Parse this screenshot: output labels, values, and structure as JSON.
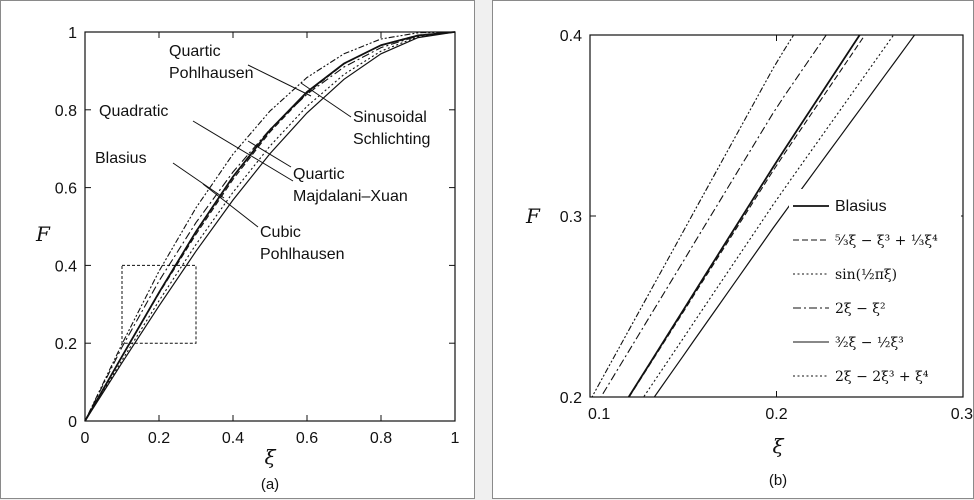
{
  "chart_data": [
    {
      "type": "line",
      "caption": "(a)",
      "xlabel": "ξ",
      "ylabel": "F",
      "xlim": [
        0,
        1
      ],
      "ylim": [
        0,
        1
      ],
      "xticks": [
        "0",
        "0.2",
        "0.4",
        "0.6",
        "0.8",
        "1"
      ],
      "yticks": [
        "0",
        "0.2",
        "0.4",
        "0.6",
        "0.8",
        "1"
      ],
      "grid": false,
      "series": [
        {
          "id": "blasius",
          "style": "solid",
          "x": [
            0,
            0.1,
            0.2,
            0.3,
            0.4,
            0.5,
            0.6,
            0.7,
            0.8,
            0.9,
            1.0
          ],
          "y": [
            0,
            0.166,
            0.33,
            0.487,
            0.628,
            0.748,
            0.846,
            0.919,
            0.966,
            0.991,
            1.0
          ]
        },
        {
          "id": "quartic-pohlhausen",
          "style": "dotted-dash",
          "x": [
            0,
            0.1,
            0.2,
            0.3,
            0.4,
            0.5,
            0.6,
            0.7,
            0.8,
            0.9,
            1.0
          ],
          "y": [
            0,
            0.198,
            0.385,
            0.548,
            0.686,
            0.797,
            0.883,
            0.944,
            0.982,
            0.998,
            1.0
          ]
        },
        {
          "id": "quadratic",
          "style": "dash-dot",
          "x": [
            0,
            0.1,
            0.2,
            0.3,
            0.4,
            0.5,
            0.6,
            0.7,
            0.8,
            0.9,
            1.0
          ],
          "y": [
            0,
            0.19,
            0.36,
            0.51,
            0.64,
            0.75,
            0.84,
            0.91,
            0.96,
            0.99,
            1.0
          ]
        },
        {
          "id": "sinusoidal",
          "style": "dotted",
          "x": [
            0,
            0.1,
            0.2,
            0.3,
            0.4,
            0.5,
            0.6,
            0.7,
            0.8,
            0.9,
            1.0
          ],
          "y": [
            0,
            0.156,
            0.309,
            0.454,
            0.588,
            0.707,
            0.809,
            0.891,
            0.951,
            0.988,
            1.0
          ]
        },
        {
          "id": "quartic-majdalani",
          "style": "dashed",
          "x": [
            0,
            0.1,
            0.2,
            0.3,
            0.4,
            0.5,
            0.6,
            0.7,
            0.8,
            0.9,
            1.0
          ],
          "y": [
            0,
            0.166,
            0.328,
            0.48,
            0.621,
            0.743,
            0.843,
            0.918,
            0.966,
            0.992,
            1.0
          ]
        },
        {
          "id": "cubic-pohlhausen",
          "style": "solid",
          "x": [
            0,
            0.1,
            0.2,
            0.3,
            0.4,
            0.5,
            0.6,
            0.7,
            0.8,
            0.9,
            1.0
          ],
          "y": [
            0,
            0.1495,
            0.296,
            0.4365,
            0.568,
            0.6875,
            0.792,
            0.8785,
            0.944,
            0.9855,
            1.0
          ]
        }
      ],
      "annotations": [
        {
          "lines": [
            "Quartic",
            "Pohlhausen"
          ]
        },
        {
          "lines": [
            "Quadratic"
          ]
        },
        {
          "lines": [
            "Blasius"
          ]
        },
        {
          "lines": [
            "Sinusoidal",
            "Schlichting"
          ]
        },
        {
          "lines": [
            "Quartic",
            "Majdalani–Xuan"
          ]
        },
        {
          "lines": [
            "Cubic",
            "Pohlhausen"
          ]
        }
      ],
      "inset_box": {
        "x": [
          0.1,
          0.3
        ],
        "y": [
          0.2,
          0.4
        ]
      }
    },
    {
      "type": "line",
      "caption": "(b)",
      "xlabel": "ξ",
      "ylabel": "F",
      "xlim": [
        0.1,
        0.3
      ],
      "ylim": [
        0.2,
        0.4
      ],
      "xticks": [
        "0.1",
        "0.2",
        "0.3"
      ],
      "yticks": [
        "0.2",
        "0.3",
        "0.4"
      ],
      "grid": false,
      "legend_position": "right",
      "legend": [
        {
          "label": "Blasius"
        },
        {
          "label": "⁵⁄₃ξ − ξ³ + ¹⁄₃ξ⁴"
        },
        {
          "label": "sin(½πξ)"
        },
        {
          "label": "2ξ − ξ²"
        },
        {
          "label": "³⁄₂ξ − ½ξ³"
        },
        {
          "label": "2ξ − 2ξ³ + ξ⁴"
        }
      ]
    }
  ]
}
